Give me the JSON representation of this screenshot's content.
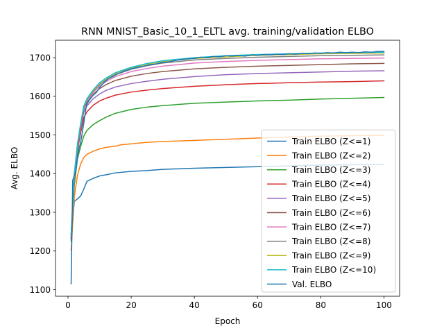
{
  "chart_data": {
    "type": "line",
    "title": "RNN MNIST_Basic_10_1_ELTL avg. training/validation ELBO",
    "xlabel": "Epoch",
    "ylabel": "Avg. ELBO",
    "xlim": [
      -3.95,
      104.95
    ],
    "ylim": [
      1083.0,
      1745.0
    ],
    "xticks": [
      0,
      20,
      40,
      60,
      80,
      100
    ],
    "yticks": [
      1100,
      1200,
      1300,
      1400,
      1500,
      1600,
      1700
    ],
    "grid": false,
    "legend_position": "center-right",
    "series": [
      {
        "name": "Train ELBO (Z<=1)",
        "color": "#1f77b4",
        "points": [
          [
            1,
            1232
          ],
          [
            2,
            1328
          ],
          [
            3,
            1335
          ],
          [
            4,
            1342
          ],
          [
            5,
            1360
          ],
          [
            6,
            1380
          ],
          [
            8,
            1388
          ],
          [
            10,
            1394
          ],
          [
            12,
            1397
          ],
          [
            15,
            1402
          ],
          [
            20,
            1406
          ],
          [
            25,
            1408
          ],
          [
            30,
            1411
          ],
          [
            40,
            1414
          ],
          [
            50,
            1416
          ],
          [
            60,
            1418
          ],
          [
            70,
            1420
          ],
          [
            80,
            1422
          ],
          [
            90,
            1423
          ],
          [
            100,
            1424
          ]
        ]
      },
      {
        "name": "Train ELBO (Z<=2)",
        "color": "#ff7f0e",
        "points": [
          [
            1,
            1202
          ],
          [
            2,
            1340
          ],
          [
            3,
            1395
          ],
          [
            4,
            1425
          ],
          [
            5,
            1442
          ],
          [
            6,
            1450
          ],
          [
            8,
            1458
          ],
          [
            10,
            1464
          ],
          [
            12,
            1468
          ],
          [
            15,
            1471
          ],
          [
            17,
            1475
          ],
          [
            20,
            1477
          ],
          [
            25,
            1481
          ],
          [
            30,
            1483
          ],
          [
            40,
            1486
          ],
          [
            50,
            1489
          ],
          [
            60,
            1492
          ],
          [
            70,
            1495
          ],
          [
            80,
            1497
          ],
          [
            90,
            1498
          ],
          [
            100,
            1499
          ]
        ]
      },
      {
        "name": "Train ELBO (Z<=3)",
        "color": "#2ca02c",
        "points": [
          [
            1,
            1225
          ],
          [
            2,
            1370
          ],
          [
            3,
            1438
          ],
          [
            4,
            1470
          ],
          [
            5,
            1497
          ],
          [
            6,
            1512
          ],
          [
            8,
            1527
          ],
          [
            10,
            1537
          ],
          [
            12,
            1546
          ],
          [
            15,
            1556
          ],
          [
            20,
            1566
          ],
          [
            25,
            1572
          ],
          [
            30,
            1576
          ],
          [
            40,
            1582
          ],
          [
            50,
            1585
          ],
          [
            60,
            1588
          ],
          [
            70,
            1590
          ],
          [
            80,
            1593
          ],
          [
            90,
            1595
          ],
          [
            100,
            1597
          ]
        ]
      },
      {
        "name": "Train ELBO (Z<=4)",
        "color": "#d62728",
        "points": [
          [
            1,
            1232
          ],
          [
            2,
            1382
          ],
          [
            3,
            1460
          ],
          [
            4,
            1505
          ],
          [
            5,
            1545
          ],
          [
            6,
            1560
          ],
          [
            8,
            1577
          ],
          [
            10,
            1588
          ],
          [
            12,
            1595
          ],
          [
            15,
            1603
          ],
          [
            20,
            1611
          ],
          [
            25,
            1616
          ],
          [
            30,
            1620
          ],
          [
            40,
            1626
          ],
          [
            50,
            1630
          ],
          [
            60,
            1633
          ],
          [
            70,
            1635
          ],
          [
            80,
            1637
          ],
          [
            90,
            1638
          ],
          [
            100,
            1640
          ]
        ]
      },
      {
        "name": "Train ELBO (Z<=5)",
        "color": "#9467bd",
        "points": [
          [
            1,
            1236
          ],
          [
            2,
            1388
          ],
          [
            3,
            1465
          ],
          [
            4,
            1515
          ],
          [
            5,
            1560
          ],
          [
            6,
            1575
          ],
          [
            8,
            1594
          ],
          [
            10,
            1606
          ],
          [
            12,
            1615
          ],
          [
            15,
            1624
          ],
          [
            20,
            1633
          ],
          [
            25,
            1639
          ],
          [
            30,
            1644
          ],
          [
            40,
            1651
          ],
          [
            50,
            1656
          ],
          [
            60,
            1659
          ],
          [
            70,
            1661
          ],
          [
            80,
            1663
          ],
          [
            90,
            1665
          ],
          [
            100,
            1666
          ]
        ]
      },
      {
        "name": "Train ELBO (Z<=6)",
        "color": "#8c564b",
        "points": [
          [
            1,
            1238
          ],
          [
            2,
            1393
          ],
          [
            3,
            1470
          ],
          [
            4,
            1522
          ],
          [
            5,
            1567
          ],
          [
            6,
            1584
          ],
          [
            8,
            1605
          ],
          [
            10,
            1620
          ],
          [
            12,
            1630
          ],
          [
            15,
            1641
          ],
          [
            20,
            1652
          ],
          [
            25,
            1659
          ],
          [
            30,
            1664
          ],
          [
            40,
            1671
          ],
          [
            50,
            1675
          ],
          [
            60,
            1678
          ],
          [
            70,
            1680
          ],
          [
            80,
            1682
          ],
          [
            90,
            1684
          ],
          [
            100,
            1685
          ]
        ]
      },
      {
        "name": "Train ELBO (Z<=7)",
        "color": "#e377c2",
        "points": [
          [
            1,
            1240
          ],
          [
            2,
            1395
          ],
          [
            3,
            1473
          ],
          [
            4,
            1525
          ],
          [
            5,
            1571
          ],
          [
            6,
            1589
          ],
          [
            8,
            1610
          ],
          [
            10,
            1627
          ],
          [
            12,
            1638
          ],
          [
            15,
            1651
          ],
          [
            20,
            1664
          ],
          [
            25,
            1672
          ],
          [
            30,
            1678
          ],
          [
            40,
            1686
          ],
          [
            50,
            1690
          ],
          [
            60,
            1693
          ],
          [
            70,
            1695
          ],
          [
            80,
            1697
          ],
          [
            90,
            1698
          ],
          [
            100,
            1699
          ]
        ]
      },
      {
        "name": "Train ELBO (Z<=8)",
        "color": "#7f7f7f",
        "points": [
          [
            1,
            1241
          ],
          [
            2,
            1397
          ],
          [
            3,
            1475
          ],
          [
            4,
            1527
          ],
          [
            5,
            1573
          ],
          [
            6,
            1591
          ],
          [
            8,
            1613
          ],
          [
            10,
            1631
          ],
          [
            12,
            1642
          ],
          [
            15,
            1656
          ],
          [
            20,
            1670
          ],
          [
            25,
            1679
          ],
          [
            30,
            1686
          ],
          [
            40,
            1694
          ],
          [
            50,
            1698
          ],
          [
            60,
            1701
          ],
          [
            70,
            1703
          ],
          [
            80,
            1705
          ],
          [
            90,
            1706
          ],
          [
            100,
            1707
          ]
        ]
      },
      {
        "name": "Train ELBO (Z<=9)",
        "color": "#bcbd22",
        "points": [
          [
            1,
            1242
          ],
          [
            2,
            1398
          ],
          [
            3,
            1476
          ],
          [
            4,
            1528
          ],
          [
            5,
            1574
          ],
          [
            6,
            1593
          ],
          [
            8,
            1615
          ],
          [
            10,
            1633
          ],
          [
            12,
            1645
          ],
          [
            15,
            1659
          ],
          [
            20,
            1673
          ],
          [
            25,
            1683
          ],
          [
            30,
            1690
          ],
          [
            40,
            1698
          ],
          [
            50,
            1702
          ],
          [
            60,
            1706
          ],
          [
            70,
            1708
          ],
          [
            80,
            1710
          ],
          [
            90,
            1711
          ],
          [
            100,
            1712
          ]
        ]
      },
      {
        "name": "Train ELBO (Z<=10)",
        "color": "#17becf",
        "points": [
          [
            1,
            1243
          ],
          [
            2,
            1399
          ],
          [
            3,
            1477
          ],
          [
            4,
            1529
          ],
          [
            5,
            1575
          ],
          [
            6,
            1594
          ],
          [
            8,
            1617
          ],
          [
            10,
            1635
          ],
          [
            12,
            1647
          ],
          [
            15,
            1661
          ],
          [
            20,
            1675
          ],
          [
            25,
            1685
          ],
          [
            30,
            1692
          ],
          [
            40,
            1700
          ],
          [
            50,
            1705
          ],
          [
            60,
            1708
          ],
          [
            70,
            1710
          ],
          [
            80,
            1712
          ],
          [
            90,
            1713
          ],
          [
            100,
            1714
          ]
        ]
      },
      {
        "name": "Val. ELBO",
        "color": "#1f77b4",
        "points": [
          [
            1,
            1115
          ],
          [
            1.5,
            1383
          ],
          [
            2,
            1395
          ],
          [
            2.5,
            1408
          ],
          [
            3,
            1440
          ],
          [
            3.5,
            1466
          ],
          [
            4,
            1480
          ],
          [
            4.5,
            1505
          ],
          [
            5,
            1530
          ],
          [
            5.5,
            1560
          ],
          [
            6,
            1580
          ],
          [
            7,
            1593
          ],
          [
            8,
            1603
          ],
          [
            9,
            1610
          ],
          [
            10,
            1623
          ],
          [
            11,
            1632
          ],
          [
            12,
            1640
          ],
          [
            13,
            1647
          ],
          [
            14,
            1650
          ],
          [
            15,
            1655
          ],
          [
            16,
            1659
          ],
          [
            17,
            1662
          ],
          [
            18,
            1666
          ],
          [
            19,
            1668
          ],
          [
            20,
            1671
          ],
          [
            22,
            1675
          ],
          [
            24,
            1678
          ],
          [
            26,
            1682
          ],
          [
            28,
            1684
          ],
          [
            30,
            1688
          ],
          [
            32,
            1689
          ],
          [
            34,
            1693
          ],
          [
            36,
            1695
          ],
          [
            38,
            1697
          ],
          [
            40,
            1698
          ],
          [
            42,
            1701
          ],
          [
            44,
            1700
          ],
          [
            46,
            1703
          ],
          [
            48,
            1702
          ],
          [
            50,
            1705
          ],
          [
            52,
            1704
          ],
          [
            54,
            1706
          ],
          [
            56,
            1704
          ],
          [
            58,
            1707
          ],
          [
            60,
            1706
          ],
          [
            62,
            1708
          ],
          [
            64,
            1707
          ],
          [
            66,
            1709
          ],
          [
            68,
            1708
          ],
          [
            70,
            1710
          ],
          [
            72,
            1709
          ],
          [
            74,
            1711
          ],
          [
            76,
            1710
          ],
          [
            78,
            1712
          ],
          [
            80,
            1711
          ],
          [
            82,
            1713
          ],
          [
            84,
            1712
          ],
          [
            86,
            1714
          ],
          [
            88,
            1713
          ],
          [
            90,
            1714
          ],
          [
            92,
            1713
          ],
          [
            94,
            1715
          ],
          [
            96,
            1714
          ],
          [
            98,
            1716
          ],
          [
            100,
            1716
          ]
        ]
      }
    ]
  }
}
